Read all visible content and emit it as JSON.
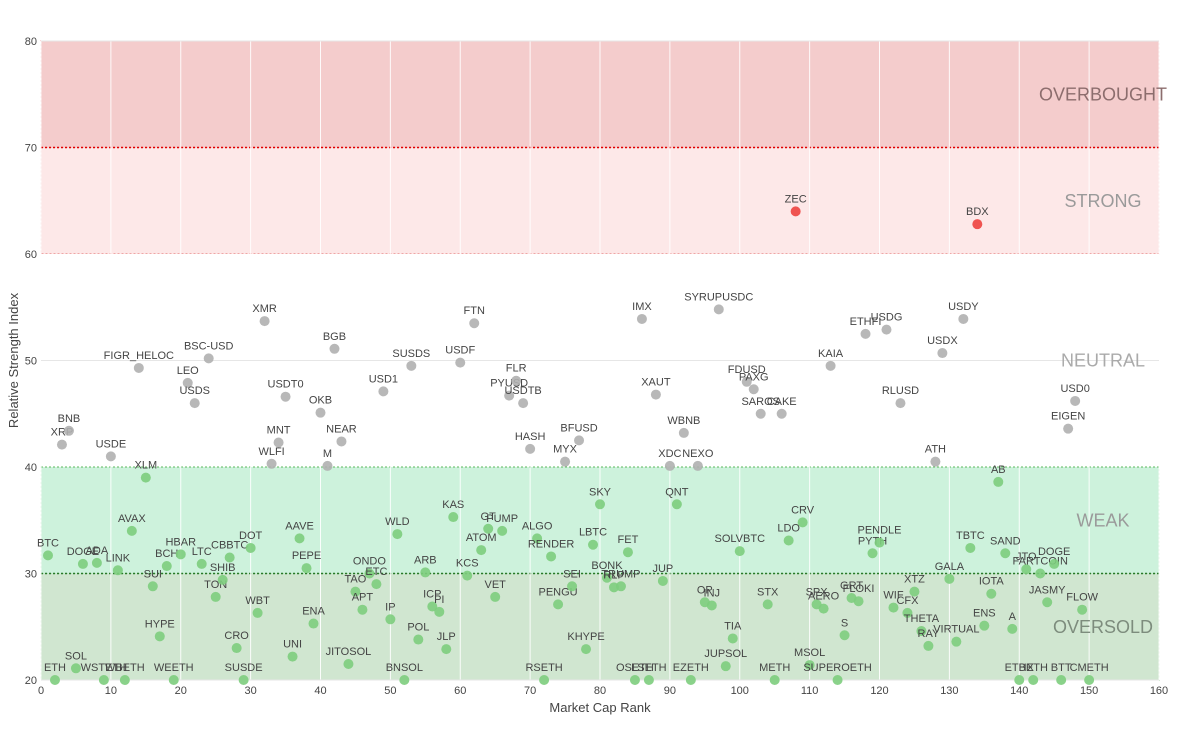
{
  "chart_data": {
    "type": "scatter",
    "xlabel": "Market Cap Rank",
    "ylabel": "Relative Strength Index",
    "xlim": [
      0,
      160
    ],
    "ylim": [
      20,
      80
    ],
    "xticks": [
      0,
      10,
      20,
      30,
      40,
      50,
      60,
      70,
      80,
      90,
      100,
      110,
      120,
      130,
      140,
      150,
      160
    ],
    "yticks": [
      20,
      30,
      40,
      50,
      60,
      70,
      80
    ],
    "grid": true,
    "zones": [
      {
        "label": "OVERBOUGHT",
        "y0": 70,
        "y1": 80,
        "color": "#f4cccc",
        "border": "#e06666",
        "text_color": "#8c6d6d"
      },
      {
        "label": "STRONG",
        "y0": 60,
        "y1": 70,
        "color": "#fde8e8",
        "border": "#e06666",
        "text_color": "#9a9a9a"
      },
      {
        "label": "NEUTRAL",
        "y0": 40,
        "y1": 60,
        "color": "#ffffff",
        "border": "",
        "text_color": "#aaaaaa"
      },
      {
        "label": "WEAK",
        "y0": 30,
        "y1": 40,
        "color": "#cdf2dc",
        "border": "#5cb85c",
        "text_color": "#9a9a9a"
      },
      {
        "label": "OVERSOLD",
        "y0": 20,
        "y1": 30,
        "color": "#d0e6d0",
        "border": "#5cb85c",
        "text_color": "#7d8c7d"
      }
    ],
    "thresholds": [
      70,
      30
    ],
    "colors": {
      "strong": "#ef5350",
      "neutral": "#b0b0b0",
      "weak": "#7dcd7d"
    },
    "points": [
      {
        "label": "BTC",
        "x": 1,
        "y": 31.7
      },
      {
        "label": "ETH",
        "x": 2,
        "y": 20
      },
      {
        "label": "XRP",
        "x": 3,
        "y": 42.1
      },
      {
        "label": "BNB",
        "x": 4,
        "y": 43.4
      },
      {
        "label": "SOL",
        "x": 5,
        "y": 21.1
      },
      {
        "label": "DOGE",
        "x": 6,
        "y": 30.9
      },
      {
        "label": "ADA",
        "x": 8,
        "y": 31
      },
      {
        "label": "WSTETH",
        "x": 9,
        "y": 20
      },
      {
        "label": "USDE",
        "x": 10,
        "y": 41
      },
      {
        "label": "LINK",
        "x": 11,
        "y": 30.3
      },
      {
        "label": "WBETH",
        "x": 12,
        "y": 20
      },
      {
        "label": "AVAX",
        "x": 13,
        "y": 34
      },
      {
        "label": "FIGR_HELOC",
        "x": 14,
        "y": 49.3
      },
      {
        "label": "XLM",
        "x": 15,
        "y": 39
      },
      {
        "label": "SUI",
        "x": 16,
        "y": 28.8
      },
      {
        "label": "HYPE",
        "x": 17,
        "y": 24.1
      },
      {
        "label": "BCH",
        "x": 18,
        "y": 30.7
      },
      {
        "label": "WEETH",
        "x": 19,
        "y": 20
      },
      {
        "label": "HBAR",
        "x": 20,
        "y": 31.8
      },
      {
        "label": "LEO",
        "x": 21,
        "y": 47.9
      },
      {
        "label": "USDS",
        "x": 22,
        "y": 46
      },
      {
        "label": "LTC",
        "x": 23,
        "y": 30.9
      },
      {
        "label": "BSC-USD",
        "x": 24,
        "y": 50.2
      },
      {
        "label": "TON",
        "x": 25,
        "y": 27.8
      },
      {
        "label": "SHIB",
        "x": 26,
        "y": 29.4
      },
      {
        "label": "CBBTC",
        "x": 27,
        "y": 31.5
      },
      {
        "label": "CRO",
        "x": 28,
        "y": 23
      },
      {
        "label": "SUSDE",
        "x": 29,
        "y": 20
      },
      {
        "label": "DOT",
        "x": 30,
        "y": 32.4
      },
      {
        "label": "WBT",
        "x": 31,
        "y": 26.3
      },
      {
        "label": "XMR",
        "x": 32,
        "y": 53.7
      },
      {
        "label": "WLFI",
        "x": 33,
        "y": 40.3
      },
      {
        "label": "MNT",
        "x": 34,
        "y": 42.3
      },
      {
        "label": "USDT0",
        "x": 35,
        "y": 46.6
      },
      {
        "label": "UNI",
        "x": 36,
        "y": 22.2
      },
      {
        "label": "AAVE",
        "x": 37,
        "y": 33.3
      },
      {
        "label": "PEPE",
        "x": 38,
        "y": 30.5
      },
      {
        "label": "ENA",
        "x": 39,
        "y": 25.3
      },
      {
        "label": "OKB",
        "x": 40,
        "y": 45.1
      },
      {
        "label": "M",
        "x": 41,
        "y": 40.1
      },
      {
        "label": "BGB",
        "x": 42,
        "y": 51.1
      },
      {
        "label": "NEAR",
        "x": 43,
        "y": 42.4
      },
      {
        "label": "JITOSOL",
        "x": 44,
        "y": 21.5
      },
      {
        "label": "TAO",
        "x": 45,
        "y": 28.3
      },
      {
        "label": "APT",
        "x": 46,
        "y": 26.6
      },
      {
        "label": "ONDO",
        "x": 47,
        "y": 30
      },
      {
        "label": "ETC",
        "x": 48,
        "y": 29
      },
      {
        "label": "USD1",
        "x": 49,
        "y": 47.1
      },
      {
        "label": "IP",
        "x": 50,
        "y": 25.7
      },
      {
        "label": "WLD",
        "x": 51,
        "y": 33.7
      },
      {
        "label": "BNSOL",
        "x": 52,
        "y": 20
      },
      {
        "label": "SUSDS",
        "x": 53,
        "y": 49.5
      },
      {
        "label": "POL",
        "x": 54,
        "y": 23.8
      },
      {
        "label": "ARB",
        "x": 55,
        "y": 30.1
      },
      {
        "label": "ICP",
        "x": 56,
        "y": 26.9
      },
      {
        "label": "PI",
        "x": 57,
        "y": 26.4
      },
      {
        "label": "JLP",
        "x": 58,
        "y": 22.9
      },
      {
        "label": "KAS",
        "x": 59,
        "y": 35.3
      },
      {
        "label": "USDF",
        "x": 60,
        "y": 49.8
      },
      {
        "label": "KCS",
        "x": 61,
        "y": 29.8
      },
      {
        "label": "FTN",
        "x": 62,
        "y": 53.5
      },
      {
        "label": "ATOM",
        "x": 63,
        "y": 32.2
      },
      {
        "label": "GT",
        "x": 64,
        "y": 34.2
      },
      {
        "label": "VET",
        "x": 65,
        "y": 27.8
      },
      {
        "label": "PUMP",
        "x": 66,
        "y": 34
      },
      {
        "label": "PYUSD",
        "x": 67,
        "y": 46.7
      },
      {
        "label": "FLR",
        "x": 68,
        "y": 48.1
      },
      {
        "label": "USDTB",
        "x": 69,
        "y": 46
      },
      {
        "label": "HASH",
        "x": 70,
        "y": 41.7
      },
      {
        "label": "ALGO",
        "x": 71,
        "y": 33.3
      },
      {
        "label": "RSETH",
        "x": 72,
        "y": 20
      },
      {
        "label": "RENDER",
        "x": 73,
        "y": 31.6
      },
      {
        "label": "PENGU",
        "x": 74,
        "y": 27.1
      },
      {
        "label": "MYX",
        "x": 75,
        "y": 40.5
      },
      {
        "label": "SEI",
        "x": 76,
        "y": 28.8
      },
      {
        "label": "BFUSD",
        "x": 77,
        "y": 42.5
      },
      {
        "label": "KHYPE",
        "x": 78,
        "y": 22.9
      },
      {
        "label": "LBTC",
        "x": 79,
        "y": 32.7
      },
      {
        "label": "SKY",
        "x": 80,
        "y": 36.5
      },
      {
        "label": "BONK",
        "x": 81,
        "y": 29.6
      },
      {
        "label": "RLP",
        "x": 82,
        "y": 28.7
      },
      {
        "label": "TRUMP",
        "x": 83,
        "y": 28.8
      },
      {
        "label": "FET",
        "x": 84,
        "y": 32
      },
      {
        "label": "OSETH",
        "x": 85,
        "y": 20
      },
      {
        "label": "IMX",
        "x": 86,
        "y": 53.9
      },
      {
        "label": "LSETH",
        "x": 87,
        "y": 20
      },
      {
        "label": "XAUT",
        "x": 88,
        "y": 46.8
      },
      {
        "label": "JUP",
        "x": 89,
        "y": 29.3
      },
      {
        "label": "XDC",
        "x": 90,
        "y": 40.1
      },
      {
        "label": "QNT",
        "x": 91,
        "y": 36.5
      },
      {
        "label": "WBNB",
        "x": 92,
        "y": 43.2
      },
      {
        "label": "EZETH",
        "x": 93,
        "y": 20
      },
      {
        "label": "NEXO",
        "x": 94,
        "y": 40.1
      },
      {
        "label": "OP",
        "x": 95,
        "y": 27.3
      },
      {
        "label": "INJ",
        "x": 96,
        "y": 27
      },
      {
        "label": "SYRUPUSDC",
        "x": 97,
        "y": 54.8
      },
      {
        "label": "JUPSOL",
        "x": 98,
        "y": 21.3
      },
      {
        "label": "TIA",
        "x": 99,
        "y": 23.9
      },
      {
        "label": "SOLVBTC",
        "x": 100,
        "y": 32.1
      },
      {
        "label": "FDUSD",
        "x": 101,
        "y": 48
      },
      {
        "label": "PAXG",
        "x": 102,
        "y": 47.3
      },
      {
        "label": "SAROS",
        "x": 103,
        "y": 45
      },
      {
        "label": "STX",
        "x": 104,
        "y": 27.1
      },
      {
        "label": "METH",
        "x": 105,
        "y": 20
      },
      {
        "label": "CAKE",
        "x": 106,
        "y": 45
      },
      {
        "label": "LDO",
        "x": 107,
        "y": 33.1
      },
      {
        "label": "ZEC",
        "x": 108,
        "y": 64
      },
      {
        "label": "CRV",
        "x": 109,
        "y": 34.8
      },
      {
        "label": "MSOL",
        "x": 110,
        "y": 21.4
      },
      {
        "label": "SPX",
        "x": 111,
        "y": 27.1
      },
      {
        "label": "AERO",
        "x": 112,
        "y": 26.7
      },
      {
        "label": "KAIA",
        "x": 113,
        "y": 49.5
      },
      {
        "label": "SUPEROETH",
        "x": 114,
        "y": 20
      },
      {
        "label": "S",
        "x": 115,
        "y": 24.2
      },
      {
        "label": "GRT",
        "x": 116,
        "y": 27.7
      },
      {
        "label": "FLOKI",
        "x": 117,
        "y": 27.4
      },
      {
        "label": "ETHFI",
        "x": 118,
        "y": 52.5
      },
      {
        "label": "PYTH",
        "x": 119,
        "y": 31.9
      },
      {
        "label": "PENDLE",
        "x": 120,
        "y": 32.9
      },
      {
        "label": "USDG",
        "x": 121,
        "y": 52.9
      },
      {
        "label": "WIF",
        "x": 122,
        "y": 26.8
      },
      {
        "label": "RLUSD",
        "x": 123,
        "y": 46
      },
      {
        "label": "CFX",
        "x": 124,
        "y": 26.3
      },
      {
        "label": "XTZ",
        "x": 125,
        "y": 28.3
      },
      {
        "label": "THETA",
        "x": 126,
        "y": 24.6
      },
      {
        "label": "RAY",
        "x": 127,
        "y": 23.2
      },
      {
        "label": "ATH",
        "x": 128,
        "y": 40.5
      },
      {
        "label": "USDX",
        "x": 129,
        "y": 50.7
      },
      {
        "label": "GALA",
        "x": 130,
        "y": 29.5
      },
      {
        "label": "VIRTUAL",
        "x": 131,
        "y": 23.6
      },
      {
        "label": "USDY",
        "x": 132,
        "y": 53.9
      },
      {
        "label": "TBTC",
        "x": 133,
        "y": 32.4
      },
      {
        "label": "BDX",
        "x": 134,
        "y": 62.8
      },
      {
        "label": "ENS",
        "x": 135,
        "y": 25.1
      },
      {
        "label": "IOTA",
        "x": 136,
        "y": 28.1
      },
      {
        "label": "AB",
        "x": 137,
        "y": 38.6
      },
      {
        "label": "SAND",
        "x": 138,
        "y": 31.9
      },
      {
        "label": "A",
        "x": 139,
        "y": 24.8
      },
      {
        "label": "ETHX",
        "x": 140,
        "y": 20
      },
      {
        "label": "JTO",
        "x": 141,
        "y": 30.4
      },
      {
        "label": "BETH",
        "x": 142,
        "y": 20
      },
      {
        "label": "FARTCOIN",
        "x": 143,
        "y": 30
      },
      {
        "label": "JASMY",
        "x": 144,
        "y": 27.3
      },
      {
        "label": "DOGE",
        "x": 145,
        "y": 30.9
      },
      {
        "label": "BTT",
        "x": 146,
        "y": 20
      },
      {
        "label": "EIGEN",
        "x": 147,
        "y": 43.6
      },
      {
        "label": "USD0",
        "x": 148,
        "y": 46.2
      },
      {
        "label": "FLOW",
        "x": 149,
        "y": 26.6
      },
      {
        "label": "CMETH",
        "x": 150,
        "y": 20
      }
    ]
  }
}
